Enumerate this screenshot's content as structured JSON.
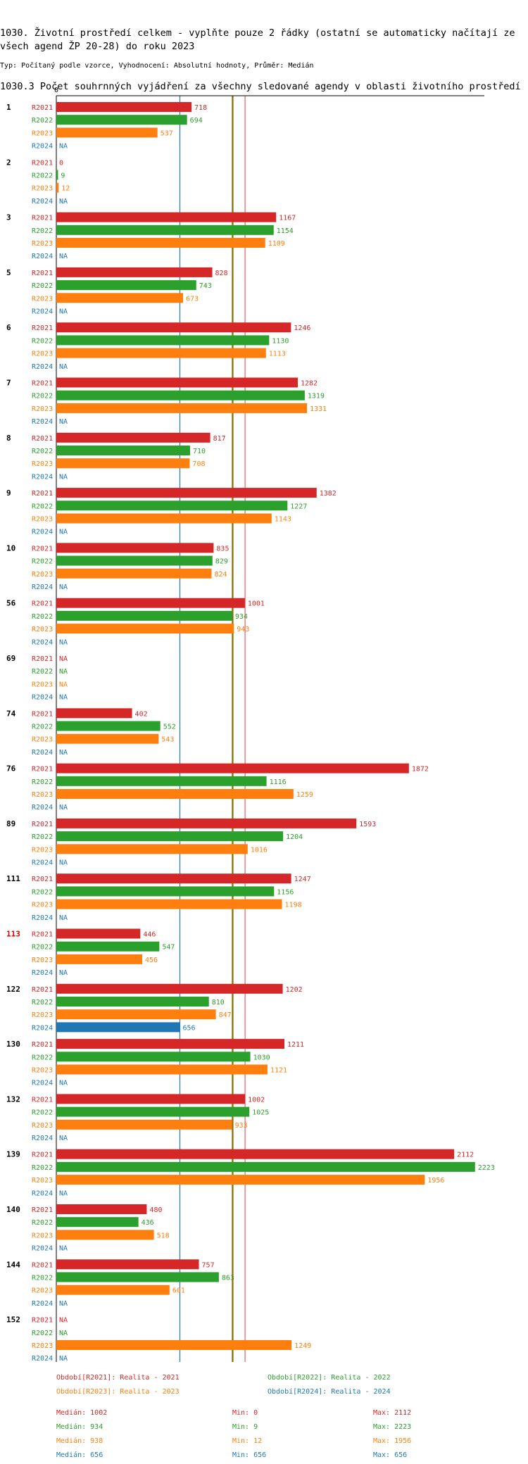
{
  "title": "1030. Životní prostředí celkem - vyplňte pouze 2 řádky (ostatní se automaticky načítají ze všech agend ŽP 20-28) do roku 2023",
  "subtitle_title": "1030.3 Počet souhrnných vyjádření za všechny sledované agendy v oblasti životního prostředí",
  "description": "Typ: Počítaný podle vzorce, Vyhodnocení: Absolutní hodnoty, Průměr: Medián",
  "colors": {
    "R2021": "#d62728",
    "R2022": "#2ca02c",
    "R2023": "#ff7f0e",
    "R2024": "#1f77b4",
    "olive": "#8c6d00",
    "highlight": "#e00000"
  },
  "chart_data": {
    "type": "bar",
    "orientation": "horizontal",
    "xlim": [
      0,
      2250
    ],
    "x_zero_label": "0",
    "series_names": [
      "R2021",
      "R2022",
      "R2023",
      "R2024"
    ],
    "na_label": "NA",
    "groups": [
      {
        "label": "1",
        "highlight": false,
        "values": [
          718,
          694,
          537,
          null
        ]
      },
      {
        "label": "2",
        "highlight": false,
        "values": [
          0,
          9,
          12,
          null
        ]
      },
      {
        "label": "3",
        "highlight": false,
        "values": [
          1167,
          1154,
          1109,
          null
        ]
      },
      {
        "label": "5",
        "highlight": false,
        "values": [
          828,
          743,
          673,
          null
        ]
      },
      {
        "label": "6",
        "highlight": false,
        "values": [
          1246,
          1130,
          1113,
          null
        ]
      },
      {
        "label": "7",
        "highlight": false,
        "values": [
          1282,
          1319,
          1331,
          null
        ]
      },
      {
        "label": "8",
        "highlight": false,
        "values": [
          817,
          710,
          708,
          null
        ]
      },
      {
        "label": "9",
        "highlight": false,
        "values": [
          1382,
          1227,
          1143,
          null
        ]
      },
      {
        "label": "10",
        "highlight": false,
        "values": [
          835,
          829,
          824,
          null
        ]
      },
      {
        "label": "56",
        "highlight": false,
        "values": [
          1001,
          934,
          943,
          null
        ]
      },
      {
        "label": "69",
        "highlight": false,
        "values": [
          null,
          null,
          null,
          null
        ]
      },
      {
        "label": "74",
        "highlight": false,
        "values": [
          402,
          552,
          543,
          null
        ]
      },
      {
        "label": "76",
        "highlight": false,
        "values": [
          1872,
          1116,
          1259,
          null
        ]
      },
      {
        "label": "89",
        "highlight": false,
        "values": [
          1593,
          1204,
          1016,
          null
        ]
      },
      {
        "label": "111",
        "highlight": false,
        "values": [
          1247,
          1156,
          1198,
          null
        ]
      },
      {
        "label": "113",
        "highlight": true,
        "values": [
          446,
          547,
          456,
          null
        ]
      },
      {
        "label": "122",
        "highlight": false,
        "values": [
          1202,
          810,
          847,
          656
        ]
      },
      {
        "label": "130",
        "highlight": false,
        "values": [
          1211,
          1030,
          1121,
          null
        ]
      },
      {
        "label": "132",
        "highlight": false,
        "values": [
          1002,
          1025,
          933,
          null
        ]
      },
      {
        "label": "139",
        "highlight": false,
        "values": [
          2112,
          2223,
          1956,
          null
        ]
      },
      {
        "label": "140",
        "highlight": false,
        "values": [
          480,
          436,
          518,
          null
        ]
      },
      {
        "label": "144",
        "highlight": false,
        "values": [
          757,
          863,
          601,
          null
        ]
      },
      {
        "label": "152",
        "highlight": false,
        "values": [
          null,
          null,
          1249,
          null
        ]
      }
    ],
    "reference_lines": [
      {
        "series": "R2024",
        "value": 656,
        "color": "#1f77b4"
      },
      {
        "series": "R2022",
        "value": 934,
        "color": "#8c6d00"
      },
      {
        "series": "R2023",
        "value": 938,
        "color": "#8c6d00"
      },
      {
        "series": "R2021",
        "value": 1002,
        "color": "#e06060"
      }
    ],
    "legend": [
      {
        "series": "R2021",
        "text": "Období[R2021]: Realita - 2021"
      },
      {
        "series": "R2022",
        "text": "Období[R2022]: Realita - 2022"
      },
      {
        "series": "R2023",
        "text": "Období[R2023]: Realita - 2023"
      },
      {
        "series": "R2024",
        "text": "Období[R2024]: Realita - 2024"
      }
    ],
    "stats": [
      {
        "series": "R2021",
        "median": "Medián: 1002",
        "min": "Min: 0",
        "max": "Max: 2112"
      },
      {
        "series": "R2022",
        "median": "Medián: 934",
        "min": "Min: 9",
        "max": "Max: 2223"
      },
      {
        "series": "R2023",
        "median": "Medián: 938",
        "min": "Min: 12",
        "max": "Max: 1956"
      },
      {
        "series": "R2024",
        "median": "Medián: 656",
        "min": "Min: 656",
        "max": "Max: 656"
      }
    ]
  }
}
